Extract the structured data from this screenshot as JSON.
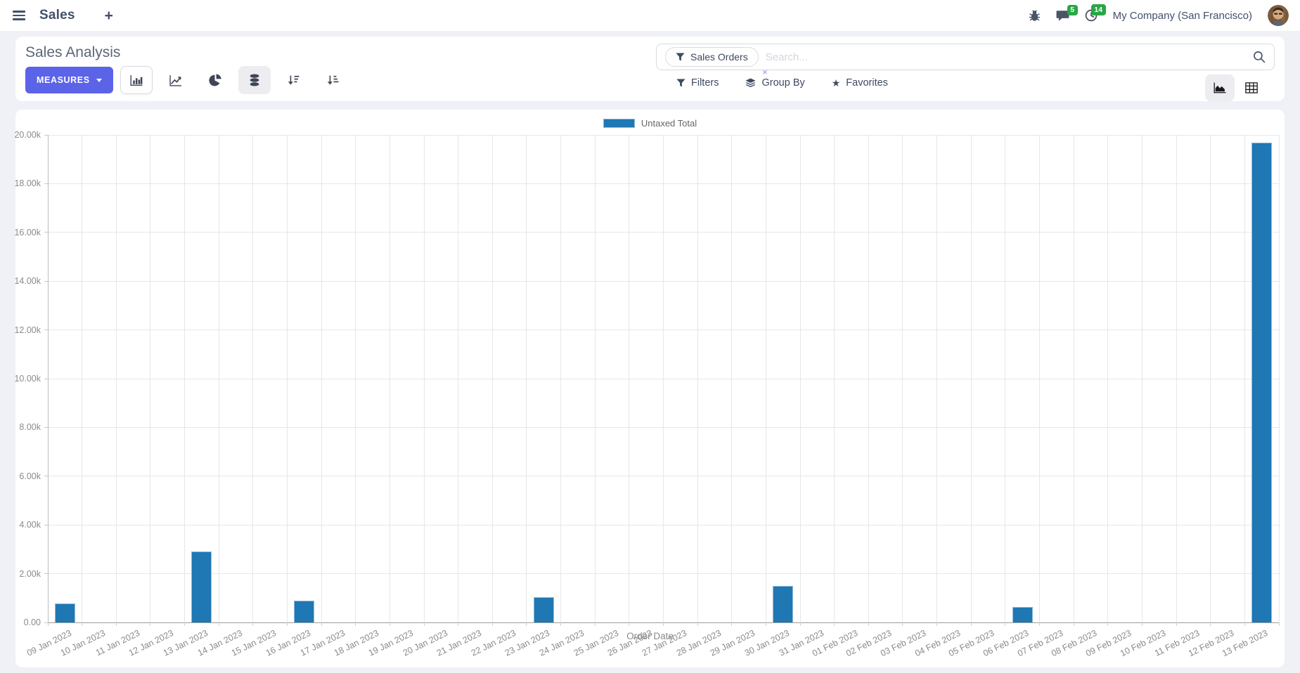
{
  "navbar": {
    "app_name": "Sales",
    "plus_label": "+",
    "systray": {
      "messages_count": "5",
      "activities_count": "14",
      "company": "My Company (San Francisco)"
    }
  },
  "control_panel": {
    "title": "Sales Analysis",
    "measures_label": "MEASURES",
    "search": {
      "facet": "Sales Orders",
      "facet_remove": "×",
      "placeholder": "Search..."
    },
    "buttons": {
      "filters": "Filters",
      "group_by": "Group By",
      "favorites": "Favorites"
    }
  },
  "colors": {
    "accent": "#5b63e8",
    "bar": "#1f77b4",
    "badge": "#28a745"
  },
  "chart_data": {
    "type": "bar",
    "title": "",
    "xlabel": "Order Date",
    "ylabel": "",
    "ylim": [
      0,
      20000
    ],
    "grid": true,
    "legend_position": "top",
    "y_ticks": [
      "0.00",
      "2.00k",
      "4.00k",
      "6.00k",
      "8.00k",
      "10.00k",
      "12.00k",
      "14.00k",
      "16.00k",
      "18.00k",
      "20.00k"
    ],
    "categories": [
      "09 Jan 2023",
      "10 Jan 2023",
      "11 Jan 2023",
      "12 Jan 2023",
      "13 Jan 2023",
      "14 Jan 2023",
      "15 Jan 2023",
      "16 Jan 2023",
      "17 Jan 2023",
      "18 Jan 2023",
      "19 Jan 2023",
      "20 Jan 2023",
      "21 Jan 2023",
      "22 Jan 2023",
      "23 Jan 2023",
      "24 Jan 2023",
      "25 Jan 2023",
      "26 Jan 2023",
      "27 Jan 2023",
      "28 Jan 2023",
      "29 Jan 2023",
      "30 Jan 2023",
      "31 Jan 2023",
      "01 Feb 2023",
      "02 Feb 2023",
      "03 Feb 2023",
      "04 Feb 2023",
      "05 Feb 2023",
      "06 Feb 2023",
      "07 Feb 2023",
      "08 Feb 2023",
      "09 Feb 2023",
      "10 Feb 2023",
      "11 Feb 2023",
      "12 Feb 2023",
      "13 Feb 2023"
    ],
    "series": [
      {
        "name": "Untaxed Total",
        "values": [
          780,
          0,
          0,
          0,
          2900,
          0,
          0,
          890,
          0,
          0,
          0,
          0,
          0,
          0,
          1040,
          0,
          0,
          0,
          0,
          0,
          0,
          1500,
          0,
          0,
          0,
          0,
          0,
          0,
          640,
          0,
          0,
          0,
          0,
          0,
          0,
          19680
        ]
      }
    ]
  }
}
